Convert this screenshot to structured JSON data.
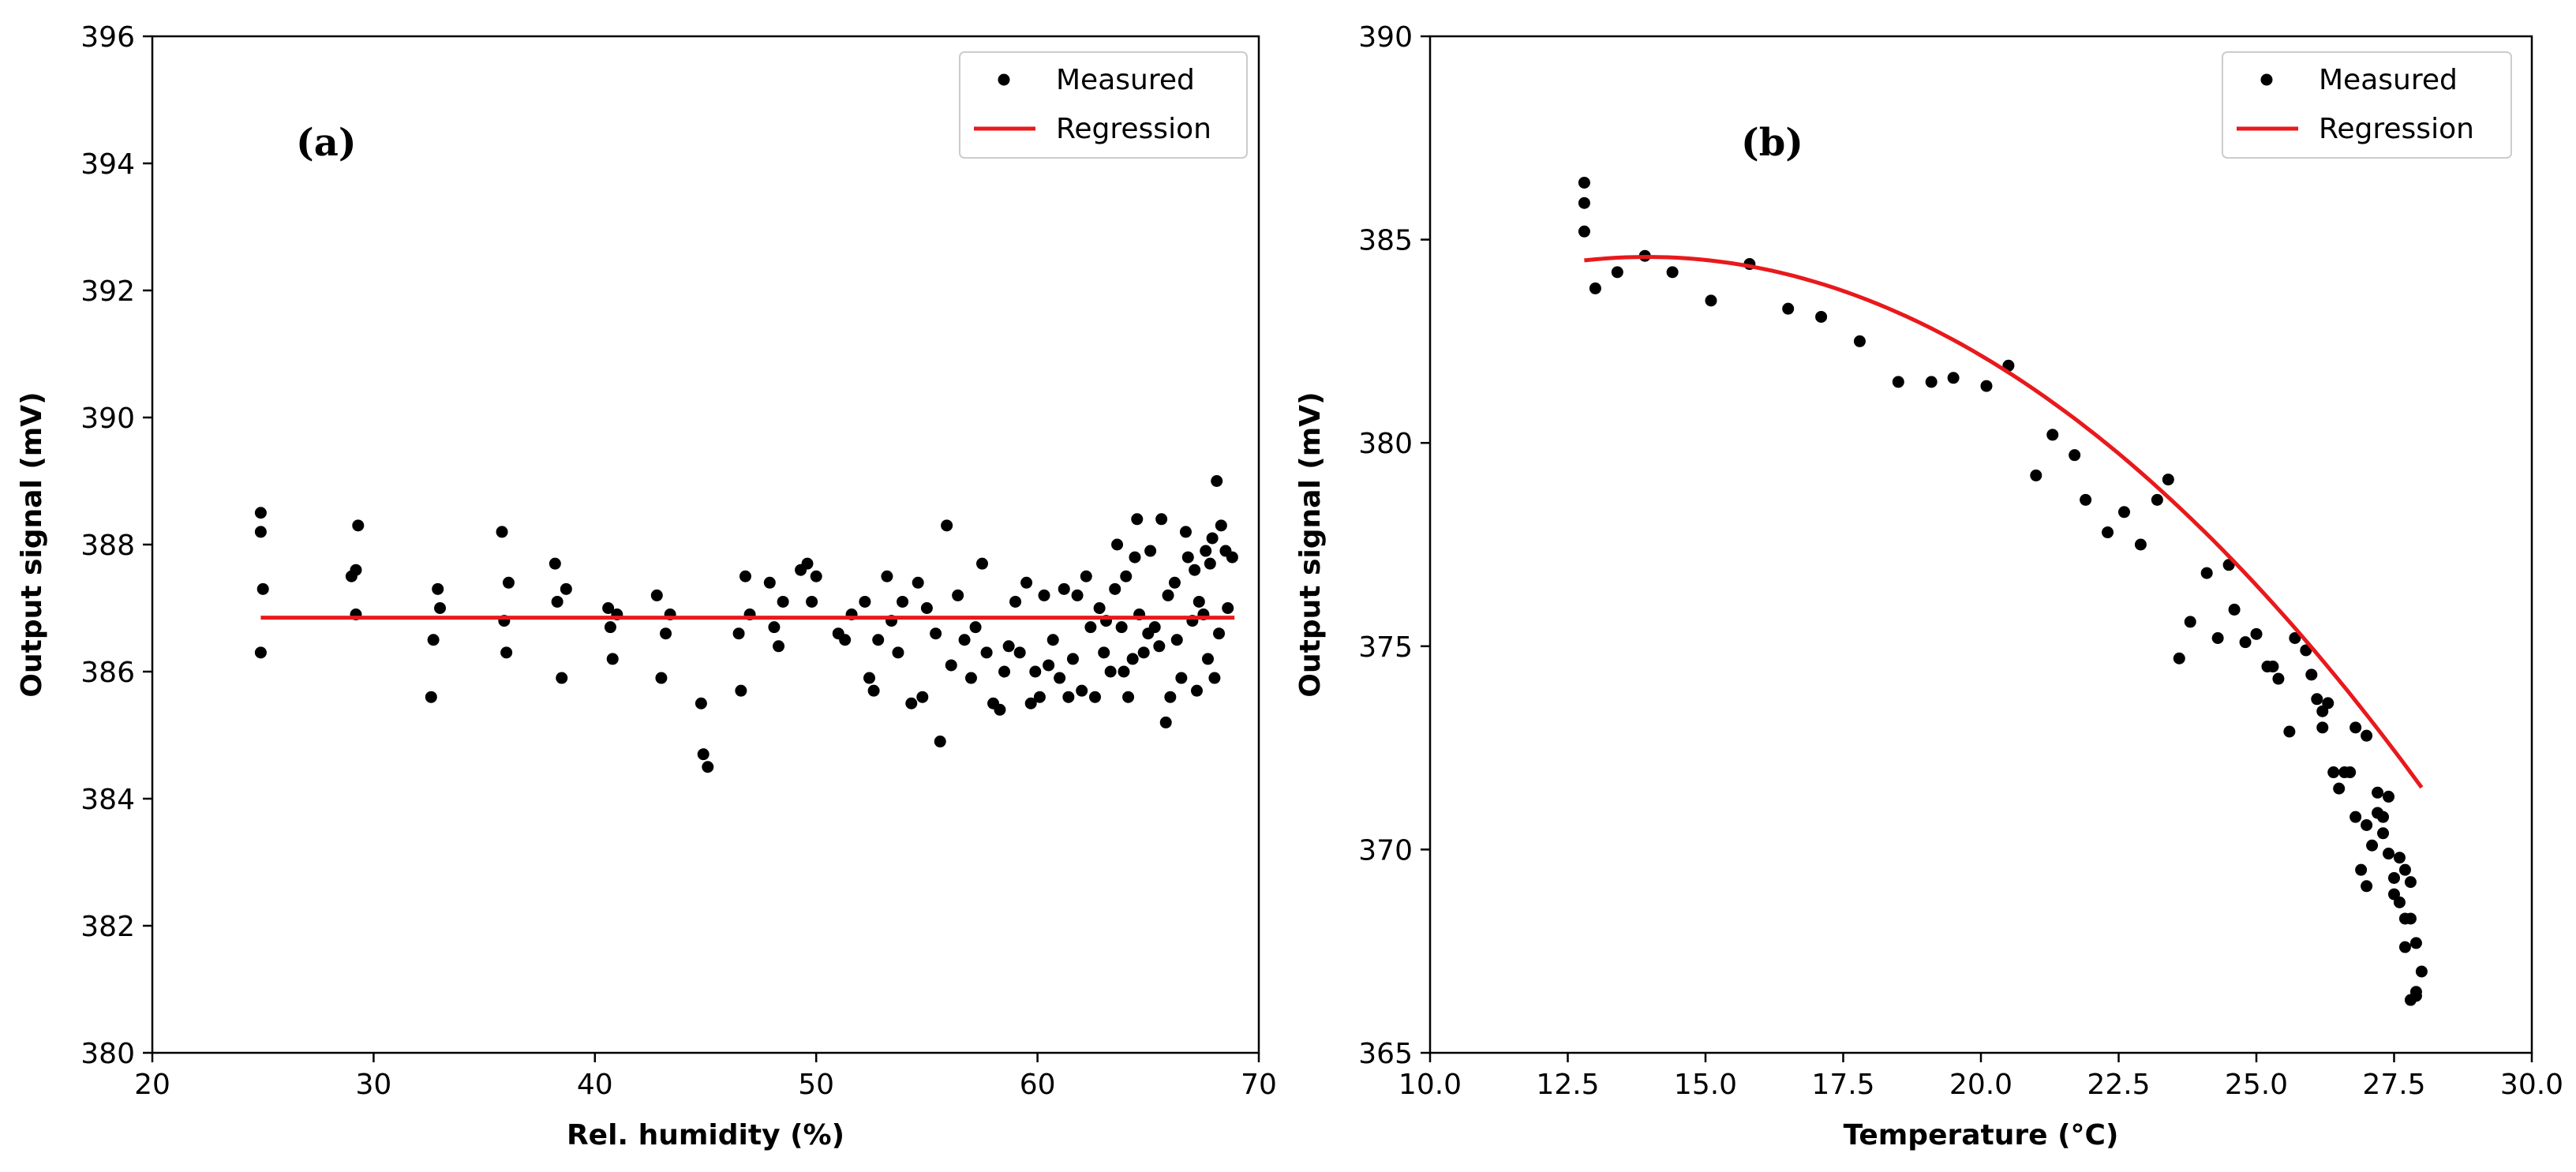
{
  "colors": {
    "measured": "#000000",
    "regression": "#e8191c"
  },
  "chart_data": [
    {
      "type": "scatter",
      "panel_label": "(a)",
      "title": "",
      "xlabel": "Rel. humidity (%)",
      "ylabel": "Output signal (mV)",
      "xlim": [
        20,
        70
      ],
      "ylim": [
        380,
        396
      ],
      "xticks": [
        20,
        30,
        40,
        50,
        60,
        70
      ],
      "yticks": [
        380,
        382,
        384,
        386,
        388,
        390,
        392,
        394,
        396
      ],
      "xtick_labels": [
        "20",
        "30",
        "40",
        "50",
        "60",
        "70"
      ],
      "ytick_labels": [
        "380",
        "382",
        "384",
        "386",
        "388",
        "390",
        "392",
        "394",
        "396"
      ],
      "grid": false,
      "legend_position": "top-right",
      "series": [
        {
          "name": "Measured",
          "kind": "scatter",
          "points": [
            [
              24.9,
              388.5
            ],
            [
              24.9,
              388.2
            ],
            [
              25.0,
              387.3
            ],
            [
              24.9,
              386.3
            ],
            [
              29.0,
              387.5
            ],
            [
              29.2,
              387.6
            ],
            [
              29.3,
              388.3
            ],
            [
              29.2,
              386.9
            ],
            [
              32.6,
              385.6
            ],
            [
              32.7,
              386.5
            ],
            [
              32.9,
              387.3
            ],
            [
              33.0,
              387.0
            ],
            [
              35.8,
              388.2
            ],
            [
              35.9,
              386.8
            ],
            [
              36.0,
              386.3
            ],
            [
              36.1,
              387.4
            ],
            [
              38.2,
              387.7
            ],
            [
              38.3,
              387.1
            ],
            [
              38.5,
              385.9
            ],
            [
              38.7,
              387.3
            ],
            [
              40.6,
              387.0
            ],
            [
              40.7,
              386.7
            ],
            [
              40.8,
              386.2
            ],
            [
              41.0,
              386.9
            ],
            [
              42.8,
              387.2
            ],
            [
              43.0,
              385.9
            ],
            [
              43.2,
              386.6
            ],
            [
              43.4,
              386.9
            ],
            [
              44.8,
              385.5
            ],
            [
              44.9,
              384.7
            ],
            [
              45.1,
              384.5
            ],
            [
              46.5,
              386.6
            ],
            [
              46.6,
              385.7
            ],
            [
              46.8,
              387.5
            ],
            [
              47.0,
              386.9
            ],
            [
              47.9,
              387.4
            ],
            [
              48.1,
              386.7
            ],
            [
              48.3,
              386.4
            ],
            [
              48.5,
              387.1
            ],
            [
              49.3,
              387.6
            ],
            [
              49.6,
              387.7
            ],
            [
              49.8,
              387.1
            ],
            [
              50.0,
              387.5
            ],
            [
              51.0,
              386.6
            ],
            [
              51.3,
              386.5
            ],
            [
              51.6,
              386.9
            ],
            [
              52.2,
              387.1
            ],
            [
              52.4,
              385.9
            ],
            [
              52.6,
              385.7
            ],
            [
              52.8,
              386.5
            ],
            [
              53.2,
              387.5
            ],
            [
              53.4,
              386.8
            ],
            [
              53.7,
              386.3
            ],
            [
              53.9,
              387.1
            ],
            [
              54.3,
              385.5
            ],
            [
              54.6,
              387.4
            ],
            [
              54.8,
              385.6
            ],
            [
              55.0,
              387.0
            ],
            [
              55.4,
              386.6
            ],
            [
              55.6,
              384.9
            ],
            [
              55.9,
              388.3
            ],
            [
              56.1,
              386.1
            ],
            [
              56.4,
              387.2
            ],
            [
              56.7,
              386.5
            ],
            [
              57.0,
              385.9
            ],
            [
              57.2,
              386.7
            ],
            [
              57.5,
              387.7
            ],
            [
              57.7,
              386.3
            ],
            [
              58.0,
              385.5
            ],
            [
              58.3,
              385.4
            ],
            [
              58.5,
              386.0
            ],
            [
              58.7,
              386.4
            ],
            [
              59.0,
              387.1
            ],
            [
              59.2,
              386.3
            ],
            [
              59.5,
              387.4
            ],
            [
              59.7,
              385.5
            ],
            [
              59.9,
              386.0
            ],
            [
              60.1,
              385.6
            ],
            [
              60.3,
              387.2
            ],
            [
              60.5,
              386.1
            ],
            [
              60.7,
              386.5
            ],
            [
              61.0,
              385.9
            ],
            [
              61.2,
              387.3
            ],
            [
              61.4,
              385.6
            ],
            [
              61.6,
              386.2
            ],
            [
              61.8,
              387.2
            ],
            [
              62.0,
              385.7
            ],
            [
              62.2,
              387.5
            ],
            [
              62.4,
              386.7
            ],
            [
              62.6,
              385.6
            ],
            [
              62.8,
              387.0
            ],
            [
              63.0,
              386.3
            ],
            [
              63.1,
              386.8
            ],
            [
              63.3,
              386.0
            ],
            [
              63.5,
              387.3
            ],
            [
              63.6,
              388.0
            ],
            [
              63.8,
              386.7
            ],
            [
              63.9,
              386.0
            ],
            [
              64.0,
              387.5
            ],
            [
              64.1,
              385.6
            ],
            [
              64.3,
              386.2
            ],
            [
              64.4,
              387.8
            ],
            [
              64.5,
              388.4
            ],
            [
              64.6,
              386.9
            ],
            [
              64.8,
              386.3
            ],
            [
              65.0,
              386.6
            ],
            [
              65.1,
              387.9
            ],
            [
              65.3,
              386.7
            ],
            [
              65.5,
              386.4
            ],
            [
              65.6,
              388.4
            ],
            [
              65.8,
              385.2
            ],
            [
              65.9,
              387.2
            ],
            [
              66.0,
              385.6
            ],
            [
              66.2,
              387.4
            ],
            [
              66.3,
              386.5
            ],
            [
              66.5,
              385.9
            ],
            [
              66.7,
              388.2
            ],
            [
              66.8,
              387.8
            ],
            [
              67.0,
              386.8
            ],
            [
              67.1,
              387.6
            ],
            [
              67.2,
              385.7
            ],
            [
              67.3,
              387.1
            ],
            [
              67.5,
              386.9
            ],
            [
              67.6,
              387.9
            ],
            [
              67.7,
              386.2
            ],
            [
              67.8,
              387.7
            ],
            [
              67.9,
              388.1
            ],
            [
              68.0,
              385.9
            ],
            [
              68.1,
              389.0
            ],
            [
              68.2,
              386.6
            ],
            [
              68.3,
              388.3
            ],
            [
              68.5,
              387.9
            ],
            [
              68.6,
              387.0
            ],
            [
              68.8,
              387.8
            ]
          ]
        },
        {
          "name": "Regression",
          "kind": "line",
          "points": [
            [
              24.9,
              386.85
            ],
            [
              68.9,
              386.85
            ]
          ]
        }
      ]
    },
    {
      "type": "scatter",
      "panel_label": "(b)",
      "title": "",
      "xlabel": "Temperature (°C)",
      "ylabel": "Output signal (mV)",
      "xlim": [
        10.0,
        30.0
      ],
      "ylim": [
        365,
        390
      ],
      "xticks": [
        10.0,
        12.5,
        15.0,
        17.5,
        20.0,
        22.5,
        25.0,
        27.5,
        30.0
      ],
      "yticks": [
        365,
        370,
        375,
        380,
        385,
        390
      ],
      "xtick_labels": [
        "10.0",
        "12.5",
        "15.0",
        "17.5",
        "20.0",
        "22.5",
        "25.0",
        "27.5",
        "30.0"
      ],
      "ytick_labels": [
        "365",
        "370",
        "375",
        "380",
        "385",
        "390"
      ],
      "grid": false,
      "legend_position": "top-right",
      "series": [
        {
          "name": "Measured",
          "kind": "scatter",
          "points": [
            [
              12.8,
              386.4
            ],
            [
              12.8,
              385.9
            ],
            [
              12.8,
              385.2
            ],
            [
              13.0,
              383.8
            ],
            [
              13.4,
              384.2
            ],
            [
              13.9,
              384.6
            ],
            [
              14.4,
              384.2
            ],
            [
              15.1,
              383.5
            ],
            [
              15.8,
              384.4
            ],
            [
              16.5,
              383.3
            ],
            [
              17.1,
              383.1
            ],
            [
              17.8,
              382.5
            ],
            [
              18.5,
              381.5
            ],
            [
              19.1,
              381.5
            ],
            [
              19.5,
              381.6
            ],
            [
              20.1,
              381.4
            ],
            [
              20.5,
              381.9
            ],
            [
              21.0,
              379.2
            ],
            [
              21.3,
              380.2
            ],
            [
              21.7,
              379.7
            ],
            [
              21.9,
              378.6
            ],
            [
              22.3,
              377.8
            ],
            [
              22.6,
              378.3
            ],
            [
              22.9,
              377.5
            ],
            [
              23.2,
              378.6
            ],
            [
              23.4,
              379.1
            ],
            [
              23.6,
              374.7
            ],
            [
              23.8,
              375.6
            ],
            [
              24.1,
              376.8
            ],
            [
              24.3,
              375.2
            ],
            [
              24.5,
              377.0
            ],
            [
              24.6,
              375.9
            ],
            [
              24.8,
              375.1
            ],
            [
              25.0,
              375.3
            ],
            [
              25.2,
              374.5
            ],
            [
              25.3,
              374.5
            ],
            [
              25.4,
              374.2
            ],
            [
              25.6,
              372.9
            ],
            [
              25.7,
              375.2
            ],
            [
              25.9,
              374.9
            ],
            [
              26.0,
              374.3
            ],
            [
              26.1,
              373.7
            ],
            [
              26.2,
              373.0
            ],
            [
              26.2,
              373.4
            ],
            [
              26.3,
              373.6
            ],
            [
              26.4,
              371.9
            ],
            [
              26.5,
              371.5
            ],
            [
              26.6,
              371.9
            ],
            [
              26.7,
              371.9
            ],
            [
              26.8,
              373.0
            ],
            [
              26.8,
              370.8
            ],
            [
              26.9,
              369.5
            ],
            [
              27.0,
              370.6
            ],
            [
              27.0,
              369.1
            ],
            [
              27.0,
              372.8
            ],
            [
              27.1,
              370.1
            ],
            [
              27.2,
              371.4
            ],
            [
              27.2,
              370.9
            ],
            [
              27.3,
              370.4
            ],
            [
              27.3,
              370.8
            ],
            [
              27.4,
              371.3
            ],
            [
              27.4,
              369.9
            ],
            [
              27.5,
              369.3
            ],
            [
              27.5,
              368.9
            ],
            [
              27.6,
              369.8
            ],
            [
              27.6,
              368.7
            ],
            [
              27.7,
              368.3
            ],
            [
              27.7,
              369.5
            ],
            [
              27.7,
              367.6
            ],
            [
              27.8,
              366.3
            ],
            [
              27.8,
              369.2
            ],
            [
              27.8,
              368.3
            ],
            [
              27.9,
              367.7
            ],
            [
              27.9,
              366.5
            ],
            [
              28.0,
              367.0
            ],
            [
              27.9,
              366.4
            ]
          ]
        },
        {
          "name": "Regression",
          "kind": "line",
          "model": "quadratic",
          "coefficients": {
            "a": -0.066,
            "b": 1.84,
            "c": 371.75
          },
          "x_range": [
            12.8,
            28.0
          ]
        }
      ]
    }
  ]
}
